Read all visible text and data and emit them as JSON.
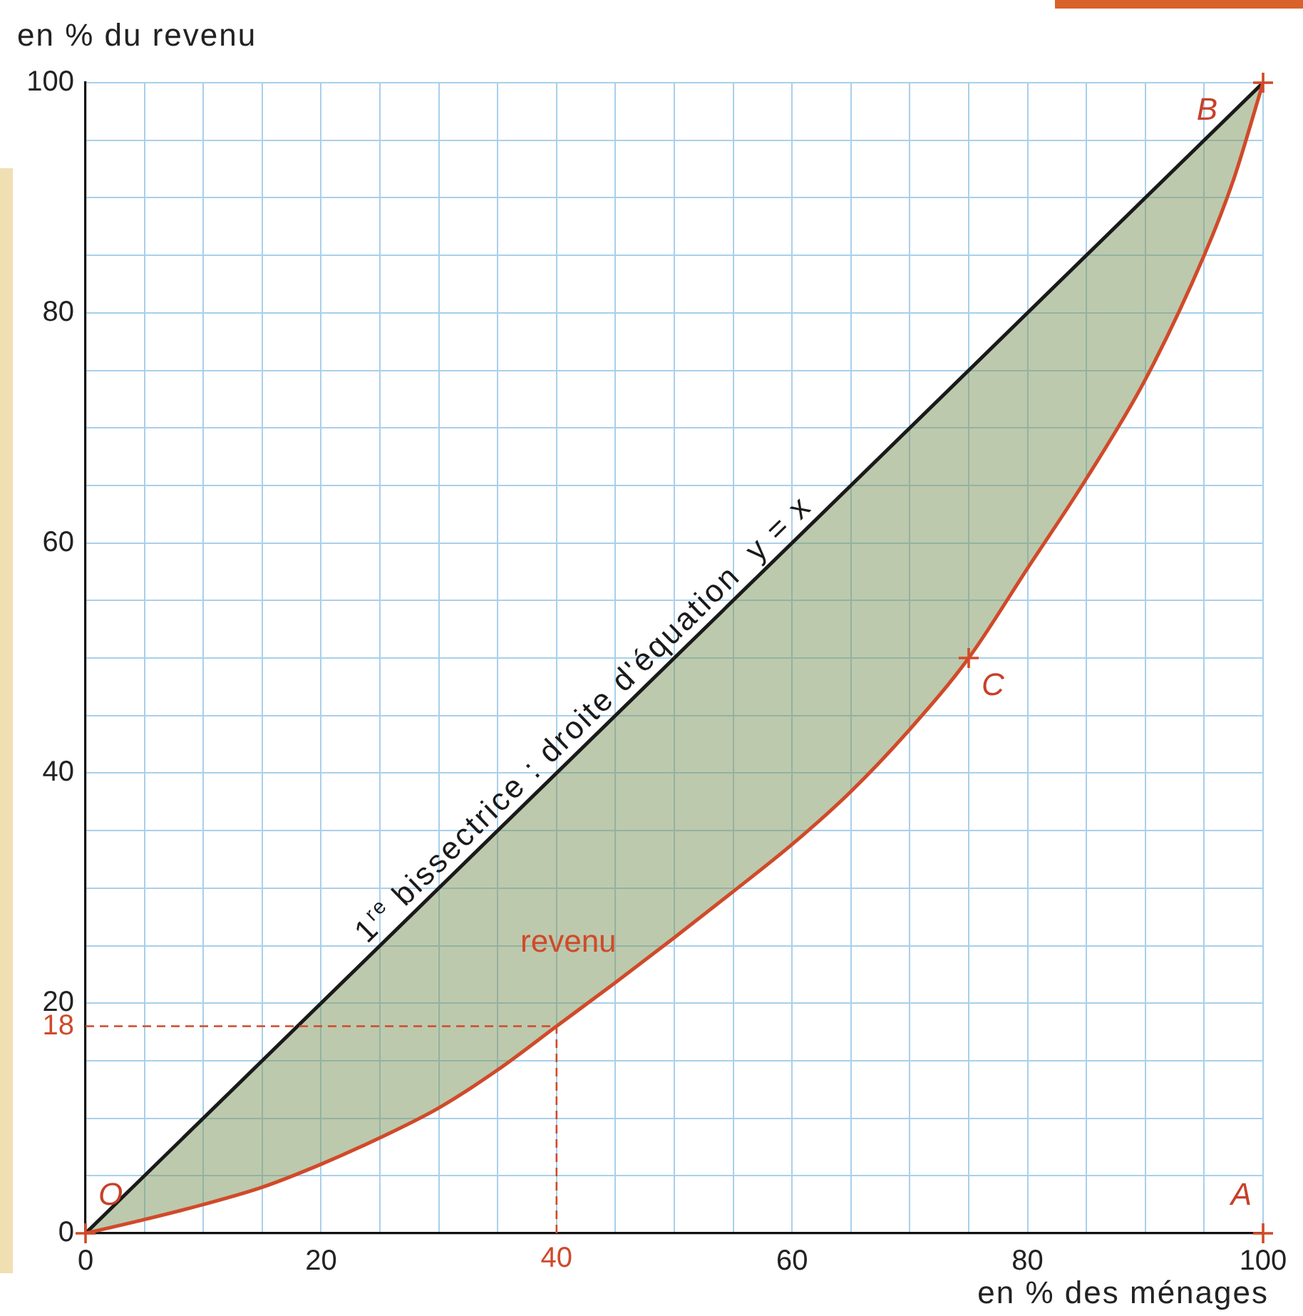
{
  "chart_data": {
    "type": "line",
    "xlabel": "en % des ménages",
    "ylabel": "en % du revenu",
    "series": [
      {
        "name": "revenu",
        "color": "#d04a2a",
        "x": [
          0,
          5,
          10,
          15,
          20,
          25,
          30,
          35,
          40,
          45,
          50,
          55,
          60,
          65,
          70,
          75,
          80,
          85,
          90,
          95,
          97.5,
          100
        ],
        "values": [
          0,
          1.2,
          2.5,
          4,
          6,
          8.3,
          10.9,
          14.2,
          18,
          21.8,
          25.7,
          29.7,
          33.8,
          38.4,
          43.8,
          50,
          57.8,
          65.6,
          74.2,
          85,
          91.6,
          100
        ],
        "lower": [
          0,
          1.2,
          2.5,
          4,
          6,
          8.3,
          10.9,
          14.2,
          18,
          21.8,
          25.7,
          29.7,
          33.8,
          38.4,
          43.8,
          50,
          57.8,
          65.6,
          74.2,
          85,
          91.6,
          100
        ],
        "upper": [
          0,
          5,
          10,
          15,
          20,
          25,
          30,
          35,
          40,
          45,
          50,
          55,
          60,
          65,
          70,
          75,
          80,
          85,
          90,
          95,
          97.5,
          100
        ]
      },
      {
        "name": "1$^{re}$ bissectrice : droite d'équation  y = x",
        "color": "#1a1a1a",
        "x": [
          0,
          100
        ],
        "values": [
          0,
          100
        ]
      },
      {
        "type": "scatter",
        "marker": "cross",
        "color": "#d04a2a",
        "x": [
          0,
          100,
          100,
          75
        ],
        "values": [
          0,
          0,
          100,
          50
        ]
      }
    ],
    "xlim": [
      0,
      100
    ],
    "ylim": [
      0,
      100
    ],
    "xticks": [
      0,
      {
        "value": 5,
        "label": null
      },
      {
        "value": 10,
        "label": null
      },
      {
        "value": 15,
        "label": null
      },
      20,
      {
        "value": 25,
        "label": null
      },
      {
        "value": 30,
        "label": null
      },
      {
        "value": 35,
        "label": null
      },
      {
        "value": 40,
        "label": null
      },
      {
        "value": 45,
        "label": null
      },
      {
        "value": 50,
        "label": null
      },
      {
        "value": 55,
        "label": null
      },
      60,
      {
        "value": 65,
        "label": null
      },
      {
        "value": 70,
        "label": null
      },
      {
        "value": 75,
        "label": null
      },
      80,
      {
        "value": 85,
        "label": null
      },
      {
        "value": 90,
        "label": null
      },
      {
        "value": 95,
        "label": null
      },
      100
    ],
    "yticks": [
      0,
      {
        "value": 5,
        "label": null
      },
      {
        "value": 10,
        "label": null
      },
      {
        "value": 15,
        "label": null
      },
      20,
      {
        "value": 25,
        "label": null
      },
      {
        "value": 30,
        "label": null
      },
      {
        "value": 35,
        "label": null
      },
      40,
      {
        "value": 45,
        "label": null
      },
      {
        "value": 50,
        "label": null
      },
      {
        "value": 55,
        "label": null
      },
      60,
      {
        "value": 65,
        "label": null
      },
      {
        "value": 70,
        "label": null
      },
      {
        "value": 75,
        "label": null
      },
      80,
      {
        "value": 85,
        "label": null
      },
      {
        "value": 90,
        "label": null
      },
      {
        "value": 95,
        "label": null
      },
      100
    ],
    "grid": true,
    "legend": false,
    "ref_lines": [
      {
        "axis": "y",
        "value": 18,
        "label": "18",
        "color": "#d04a2a",
        "line_style": "dashed"
      },
      {
        "axis": "x",
        "value": 40,
        "label": "40",
        "color": "#d04a2a",
        "line_style": "dashed"
      }
    ],
    "annotations": [
      {
        "text": "O",
        "x": 0,
        "y": 0
      },
      {
        "text": "A",
        "x": 100,
        "y": 0
      },
      {
        "text": "B",
        "x": 100,
        "y": 100
      },
      {
        "text": "C",
        "x": 75,
        "y": 50
      }
    ]
  }
}
